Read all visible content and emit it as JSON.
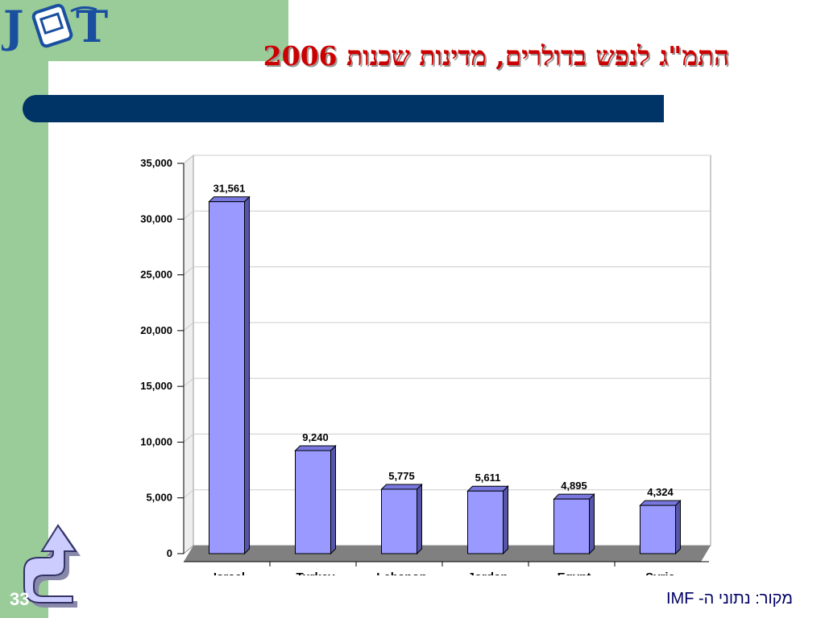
{
  "logo": {
    "text": "JCT"
  },
  "title": "התמ\"ג לנפש בדולרים, מדינות שכנות 2006",
  "source": "מקור: נתוני ה- IMF",
  "slide_number": "33",
  "colors": {
    "bar_fill": "#9999ff",
    "bar_top": "#7777dd",
    "bar_side": "#5555aa",
    "floor": "#808080",
    "title": "#cc0000",
    "title_bar": "#003366",
    "sidebar": "#99cc99"
  },
  "chart_data": {
    "type": "bar",
    "categories": [
      "Israel",
      "Turkey",
      "Lebanon",
      "Jordan",
      "Egypt",
      "Syria"
    ],
    "values": [
      31561,
      9240,
      5775,
      5611,
      4895,
      4324
    ],
    "value_labels": [
      "31,561",
      "9,240",
      "5,775",
      "5,611",
      "4,895",
      "4,324"
    ],
    "y_ticks": [
      "0",
      "5,000",
      "10,000",
      "15,000",
      "20,000",
      "25,000",
      "30,000",
      "35,000"
    ],
    "ylim": [
      0,
      35000
    ],
    "grid": true,
    "legend": false,
    "title": "",
    "xlabel": "",
    "ylabel": ""
  }
}
